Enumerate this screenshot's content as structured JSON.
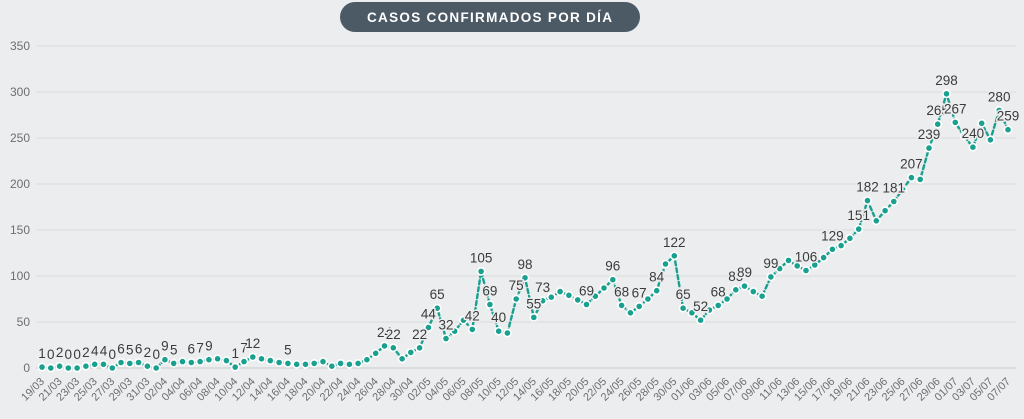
{
  "title": "CASOS CONFIRMADOS POR DÍA",
  "colors": {
    "background": "#ECEDEF",
    "title_bg": "#4C5A66",
    "title_text": "#FFFFFF",
    "line": "#19A08F",
    "dot_fill": "#19A08F",
    "dot_stroke": "#FFFFFF",
    "grid": "#DADCDE",
    "axis_zero_line": "#C9CBCD",
    "axis_text": "#6E6E6E",
    "point_label_text": "#3B3B3B",
    "point_label_halo": "#ECEDEF"
  },
  "chart_data": {
    "type": "line",
    "title": "CASOS CONFIRMADOS POR DÍA",
    "xlabel": "",
    "ylabel": "",
    "ylim": [
      0,
      350
    ],
    "y_ticks": [
      0,
      50,
      100,
      150,
      200,
      250,
      300,
      350
    ],
    "grid": true,
    "legend": false,
    "x_tick_every": 2,
    "line_style": "dashed",
    "x": [
      "19/03",
      "20/03",
      "21/03",
      "22/03",
      "23/03",
      "24/03",
      "25/03",
      "26/03",
      "27/03",
      "28/03",
      "29/03",
      "30/03",
      "31/03",
      "01/04",
      "02/04",
      "03/04",
      "04/04",
      "05/04",
      "06/04",
      "07/04",
      "08/04",
      "09/04",
      "10/04",
      "11/04",
      "12/04",
      "13/04",
      "14/04",
      "15/04",
      "16/04",
      "17/04",
      "18/04",
      "19/04",
      "20/04",
      "21/04",
      "22/04",
      "23/04",
      "24/04",
      "25/04",
      "26/04",
      "27/04",
      "28/04",
      "29/04",
      "30/04",
      "01/05",
      "02/05",
      "03/05",
      "04/05",
      "05/05",
      "06/05",
      "07/05",
      "08/05",
      "09/05",
      "10/05",
      "11/05",
      "12/05",
      "13/05",
      "14/05",
      "15/05",
      "16/05",
      "17/05",
      "18/05",
      "19/05",
      "20/05",
      "21/05",
      "22/05",
      "23/05",
      "24/05",
      "25/05",
      "26/05",
      "27/05",
      "28/05",
      "29/05",
      "30/05",
      "31/05",
      "01/06",
      "02/06",
      "03/06",
      "04/06",
      "05/06",
      "06/06",
      "07/06",
      "08/06",
      "09/06",
      "10/06",
      "11/06",
      "12/06",
      "13/06",
      "14/06",
      "15/06",
      "16/06",
      "17/06",
      "18/06",
      "19/06",
      "20/06",
      "21/06",
      "22/06",
      "23/06",
      "24/06",
      "25/06",
      "26/06",
      "27/06",
      "28/06",
      "29/06",
      "30/06",
      "01/07",
      "02/07",
      "03/07",
      "04/07",
      "05/07",
      "06/07",
      "07/07"
    ],
    "values": [
      1,
      0,
      2,
      0,
      0,
      2,
      4,
      4,
      0,
      6,
      5,
      6,
      2,
      0,
      9,
      5,
      7,
      6,
      7,
      9,
      10,
      8,
      1,
      7,
      12,
      10,
      8,
      6,
      5,
      4,
      4,
      5,
      7,
      2,
      5,
      4,
      5,
      9,
      16,
      24,
      22,
      10,
      17,
      22,
      44,
      65,
      32,
      40,
      52,
      42,
      105,
      69,
      40,
      38,
      75,
      98,
      55,
      73,
      77,
      83,
      79,
      74,
      69,
      78,
      87,
      96,
      68,
      60,
      67,
      75,
      84,
      113,
      122,
      65,
      60,
      52,
      63,
      68,
      75,
      85,
      89,
      83,
      78,
      99,
      108,
      117,
      111,
      106,
      112,
      120,
      129,
      133,
      141,
      151,
      182,
      160,
      171,
      181,
      194,
      207,
      205,
      239,
      265,
      298,
      267,
      252,
      240,
      266,
      248,
      280,
      259
    ],
    "show_label": [
      1,
      1,
      1,
      1,
      1,
      1,
      1,
      1,
      1,
      1,
      1,
      1,
      1,
      1,
      1,
      1,
      0,
      1,
      1,
      1,
      0,
      0,
      1,
      1,
      1,
      0,
      0,
      0,
      1,
      0,
      0,
      0,
      0,
      0,
      0,
      0,
      0,
      0,
      0,
      1,
      1,
      0,
      0,
      1,
      1,
      1,
      1,
      0,
      0,
      1,
      1,
      1,
      1,
      0,
      1,
      1,
      1,
      1,
      0,
      0,
      0,
      0,
      1,
      0,
      0,
      1,
      1,
      0,
      1,
      0,
      1,
      0,
      1,
      1,
      0,
      1,
      0,
      1,
      0,
      1,
      1,
      0,
      0,
      1,
      0,
      0,
      0,
      1,
      0,
      0,
      1,
      0,
      0,
      1,
      1,
      0,
      0,
      1,
      0,
      1,
      0,
      1,
      1,
      1,
      1,
      0,
      1,
      0,
      0,
      1,
      1
    ]
  }
}
